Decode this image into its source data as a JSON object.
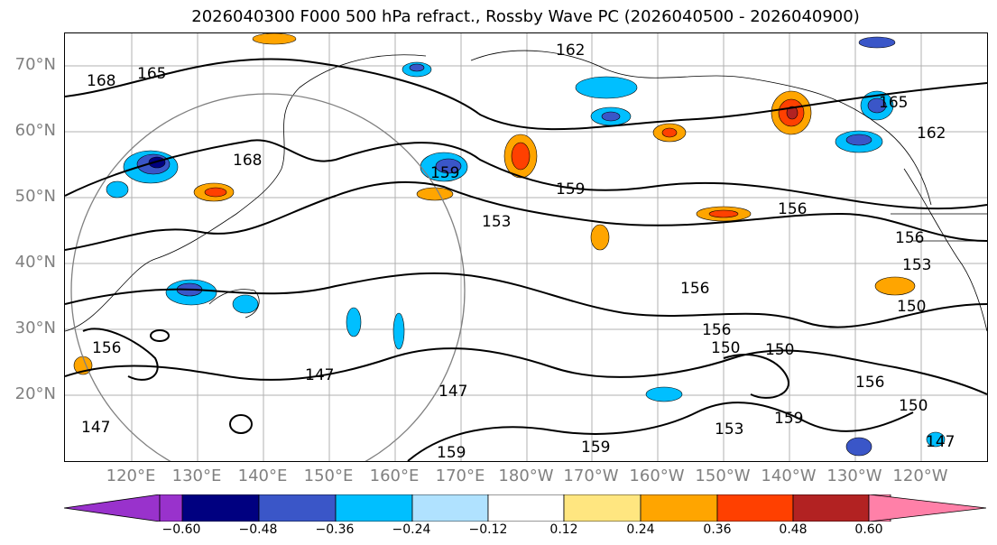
{
  "title": "2026040300 F000 500 hPa refract., Rossby Wave PC (2026040500 - 2026040900)",
  "map": {
    "lat_labels": [
      "70°N",
      "60°N",
      "50°N",
      "40°N",
      "30°N",
      "20°N"
    ],
    "lon_labels": [
      "120°E",
      "130°E",
      "140°E",
      "150°E",
      "160°E",
      "170°E",
      "180°W",
      "170°W",
      "160°W",
      "150°W",
      "140°W",
      "130°W",
      "120°W"
    ],
    "contour_labels": [
      "162",
      "168",
      "165",
      "168",
      "165",
      "162",
      "159",
      "159",
      "153",
      "156",
      "156",
      "156",
      "156",
      "150",
      "150",
      "153",
      "150",
      "147",
      "147",
      "147",
      "156",
      "159",
      "156",
      "150",
      "159",
      "159",
      "153",
      "147"
    ],
    "feature_colors": {
      "land_outline": "#000000",
      "grid": "#b0b0b0",
      "circle": "#808080"
    }
  },
  "colorbar": {
    "ticks": [
      "−0.60",
      "−0.48",
      "−0.36",
      "−0.24",
      "−0.12",
      "0.12",
      "0.24",
      "0.36",
      "0.48",
      "0.60"
    ],
    "colors": [
      "#9932cc",
      "#000080",
      "#3a56c8",
      "#00bfff",
      "#b0e2ff",
      "#ffffff",
      "#ffe680",
      "#ffa500",
      "#ff4000",
      "#b22222",
      "#ff80a8"
    ]
  }
}
